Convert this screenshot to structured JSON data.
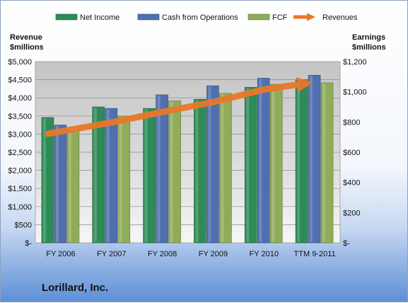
{
  "title": "Lorillard, Inc.",
  "chart_data": {
    "type": "bar",
    "categories": [
      "FY 2006",
      "FY 2007",
      "FY 2008",
      "FY 2009",
      "FY 2010",
      "TTM 9-2011"
    ],
    "series": [
      {
        "name": "Net Income",
        "axis": "right",
        "values": [
          830,
          900,
          890,
          950,
          1030,
          1080
        ],
        "color": "#2e8b57"
      },
      {
        "name": "Cash from Operations",
        "axis": "right",
        "values": [
          780,
          890,
          980,
          1040,
          1090,
          1110
        ],
        "color": "#4f6fae"
      },
      {
        "name": "FCF",
        "axis": "right",
        "values": [
          740,
          840,
          940,
          990,
          1050,
          1060
        ],
        "color": "#8fac5a"
      },
      {
        "name": "Revenues",
        "axis": "left",
        "type": "line",
        "values": [
          3010,
          3320,
          3610,
          3880,
          4230,
          4400
        ],
        "color": "#e8782a"
      }
    ],
    "left_axis": {
      "label_line1": "Revenue",
      "label_line2": "$millions",
      "ylim": [
        0,
        5000
      ],
      "ticks": [
        0,
        500,
        1000,
        1500,
        2000,
        2500,
        3000,
        3500,
        4000,
        4500,
        5000
      ],
      "tick_labels": [
        "$-",
        "$500",
        "$1,000",
        "$1,500",
        "$2,000",
        "$2,500",
        "$3,000",
        "$3,500",
        "$4,000",
        "$4,500",
        "$5,000"
      ]
    },
    "right_axis": {
      "label_line1": "Earnings",
      "label_line2": "$millions",
      "ylim": [
        0,
        1200
      ],
      "ticks": [
        0,
        200,
        400,
        600,
        800,
        1000,
        1200
      ],
      "tick_labels": [
        "$-",
        "$200",
        "$400",
        "$600",
        "$800",
        "$1,000",
        "$1,200"
      ]
    },
    "legend_position": "top",
    "grid": true
  }
}
